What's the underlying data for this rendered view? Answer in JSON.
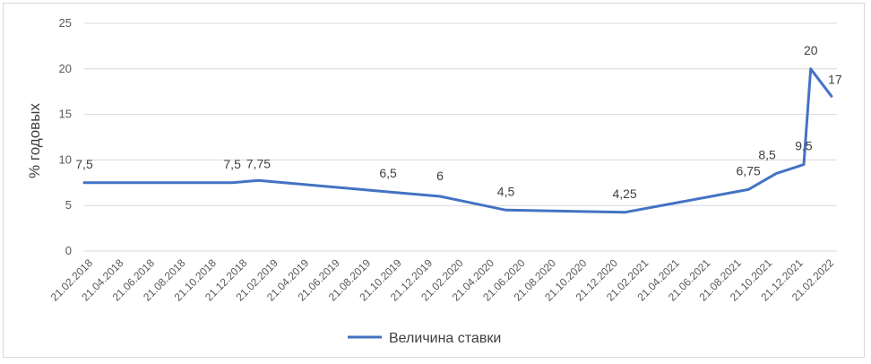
{
  "chart_data": {
    "type": "line",
    "title": "",
    "xlabel": "",
    "ylabel": "% годовых",
    "ylim": [
      0,
      25
    ],
    "yticks": [
      "0",
      "5",
      "10",
      "15",
      "20",
      "25"
    ],
    "grid": true,
    "legend_position": "bottom",
    "x_tick_labels": [
      "21.02.2018",
      "21.04.2018",
      "21.06.2018",
      "21.08.2018",
      "21.10.2018",
      "21.12.2018",
      "21.02.2019",
      "21.04.2019",
      "21.06.2019",
      "21.08.2019",
      "21.10.2019",
      "21.12.2019",
      "21.02.2020",
      "21.04.2020",
      "21.06.2020",
      "21.08.2020",
      "21.10.2020",
      "21.12.2020",
      "21.02.2021",
      "21.04.2021",
      "21.06.2021",
      "21.08.2021",
      "21.10.2021",
      "21.12.2021",
      "21.02.2022"
    ],
    "x_range": [
      "2018-02-21",
      "2022-04-22"
    ],
    "series": [
      {
        "name": "Величина ставки",
        "color": "#4472c4",
        "points": [
          {
            "x": "2018-02-21",
            "y": 7.5,
            "label": "7,5"
          },
          {
            "x": "2018-12-17",
            "y": 7.5,
            "label": "7,5"
          },
          {
            "x": "2019-02-08",
            "y": 7.75,
            "label": "7,75"
          },
          {
            "x": "2019-10-28",
            "y": 6.5,
            "label": "6,5"
          },
          {
            "x": "2020-02-10",
            "y": 6,
            "label": "6"
          },
          {
            "x": "2020-06-22",
            "y": 4.5,
            "label": "4,5"
          },
          {
            "x": "2021-02-17",
            "y": 4.25,
            "label": "4,25"
          },
          {
            "x": "2021-10-25",
            "y": 6.75,
            "label": "6,75"
          },
          {
            "x": "2021-12-20",
            "y": 8.5,
            "label": "8,5"
          },
          {
            "x": "2022-02-14",
            "y": 9.5,
            "label": "9,5"
          },
          {
            "x": "2022-02-28",
            "y": 20,
            "label": "20"
          },
          {
            "x": "2022-04-11",
            "y": 17,
            "label": "17"
          }
        ]
      }
    ]
  }
}
